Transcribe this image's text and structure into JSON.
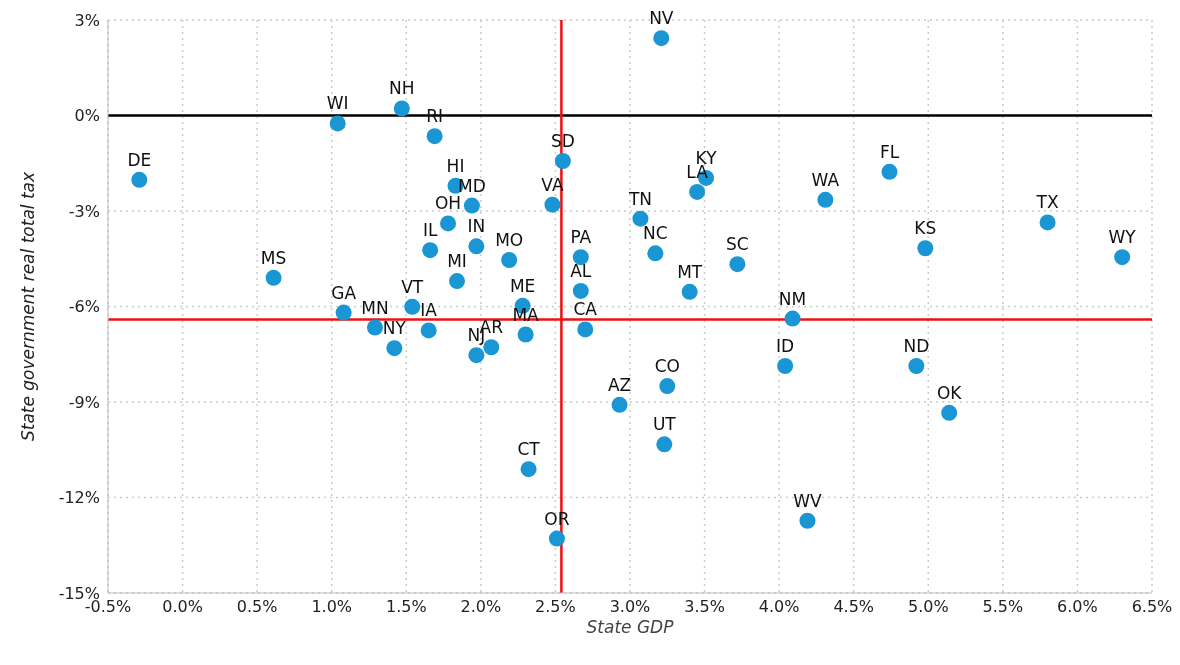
{
  "chart_data": {
    "type": "scatter",
    "xlabel": "State GDP",
    "ylabel": "State government real total tax",
    "x": [
      3.21,
      1.47,
      1.04,
      1.69,
      -0.29,
      2.55,
      1.83,
      1.94,
      1.78,
      1.66,
      1.97,
      2.19,
      1.84,
      1.54,
      1.65,
      2.28,
      2.3,
      2.07,
      1.97,
      1.08,
      1.29,
      1.42,
      2.48,
      0.61,
      3.51,
      3.45,
      3.07,
      3.17,
      2.67,
      2.67,
      2.7,
      3.4,
      3.72,
      3.25,
      2.93,
      3.23,
      4.74,
      4.31,
      5.8,
      6.3,
      4.98,
      4.09,
      4.04,
      4.92,
      5.14,
      4.19,
      2.32,
      2.51
    ],
    "series": [
      {
        "color": "#1b96d4",
        "values": [
          2.43,
          0.22,
          -0.25,
          -0.65,
          -2.02,
          -1.43,
          -2.21,
          -2.83,
          -3.39,
          -4.23,
          -4.11,
          -4.54,
          -5.2,
          -6.01,
          -6.75,
          -5.98,
          -6.88,
          -7.28,
          -7.53,
          -6.19,
          -6.66,
          -7.31,
          -2.8,
          -5.1,
          -1.96,
          -2.4,
          -3.24,
          -4.33,
          -4.45,
          -5.51,
          -6.72,
          -5.54,
          -4.67,
          -8.5,
          -9.09,
          -10.33,
          -1.77,
          -2.65,
          -3.36,
          -4.45,
          -4.17,
          -6.38,
          -7.87,
          -7.87,
          -9.34,
          -12.73,
          -11.11,
          -13.29
        ]
      }
    ],
    "annotations": [
      {
        "text": "NV",
        "x": 3.21,
        "y": 2.43
      },
      {
        "text": "NH",
        "x": 1.47,
        "y": 0.22
      },
      {
        "text": "WI",
        "x": 1.04,
        "y": -0.25
      },
      {
        "text": "RI",
        "x": 1.69,
        "y": -0.65
      },
      {
        "text": "DE",
        "x": -0.29,
        "y": -2.02
      },
      {
        "text": "SD",
        "x": 2.55,
        "y": -1.43
      },
      {
        "text": "HI",
        "x": 1.83,
        "y": -2.21
      },
      {
        "text": "MD",
        "x": 1.94,
        "y": -2.83
      },
      {
        "text": "OH",
        "x": 1.78,
        "y": -3.39
      },
      {
        "text": "IL",
        "x": 1.66,
        "y": -4.23
      },
      {
        "text": "IN",
        "x": 1.97,
        "y": -4.11
      },
      {
        "text": "MO",
        "x": 2.19,
        "y": -4.54
      },
      {
        "text": "MI",
        "x": 1.84,
        "y": -5.2
      },
      {
        "text": "VT",
        "x": 1.54,
        "y": -6.01
      },
      {
        "text": "IA",
        "x": 1.65,
        "y": -6.75
      },
      {
        "text": "ME",
        "x": 2.28,
        "y": -5.98
      },
      {
        "text": "MA",
        "x": 2.3,
        "y": -6.88
      },
      {
        "text": "AR",
        "x": 2.07,
        "y": -7.28
      },
      {
        "text": "NJ",
        "x": 1.97,
        "y": -7.53
      },
      {
        "text": "GA",
        "x": 1.08,
        "y": -6.19
      },
      {
        "text": "MN",
        "x": 1.29,
        "y": -6.66
      },
      {
        "text": "NY",
        "x": 1.42,
        "y": -7.31
      },
      {
        "text": "VA",
        "x": 2.48,
        "y": -2.8
      },
      {
        "text": "MS",
        "x": 0.61,
        "y": -5.1
      },
      {
        "text": "KY",
        "x": 3.51,
        "y": -1.96
      },
      {
        "text": "LA",
        "x": 3.45,
        "y": -2.4
      },
      {
        "text": "TN",
        "x": 3.07,
        "y": -3.24
      },
      {
        "text": "NC",
        "x": 3.17,
        "y": -4.33
      },
      {
        "text": "PA",
        "x": 2.67,
        "y": -4.45
      },
      {
        "text": "AL",
        "x": 2.67,
        "y": -5.51
      },
      {
        "text": "CA",
        "x": 2.7,
        "y": -6.72
      },
      {
        "text": "MT",
        "x": 3.4,
        "y": -5.54
      },
      {
        "text": "SC",
        "x": 3.72,
        "y": -4.67
      },
      {
        "text": "CO",
        "x": 3.25,
        "y": -8.5
      },
      {
        "text": "AZ",
        "x": 2.93,
        "y": -9.09
      },
      {
        "text": "UT",
        "x": 3.23,
        "y": -10.33
      },
      {
        "text": "FL",
        "x": 4.74,
        "y": -1.77
      },
      {
        "text": "WA",
        "x": 4.31,
        "y": -2.65
      },
      {
        "text": "TX",
        "x": 5.8,
        "y": -3.36
      },
      {
        "text": "WY",
        "x": 6.3,
        "y": -4.45
      },
      {
        "text": "KS",
        "x": 4.98,
        "y": -4.17
      },
      {
        "text": "NM",
        "x": 4.09,
        "y": -6.38
      },
      {
        "text": "ID",
        "x": 4.04,
        "y": -7.87
      },
      {
        "text": "ND",
        "x": 4.92,
        "y": -7.87
      },
      {
        "text": "OK",
        "x": 5.14,
        "y": -9.34
      },
      {
        "text": "WV",
        "x": 4.19,
        "y": -12.73
      },
      {
        "text": "CT",
        "x": 2.32,
        "y": -11.11
      },
      {
        "text": "OR",
        "x": 2.51,
        "y": -13.29
      }
    ],
    "xlim": [
      -0.5,
      6.5
    ],
    "xticks": [
      {
        "value": -0.5,
        "label": "-0.5%"
      },
      {
        "value": 0,
        "label": "0.0%"
      },
      {
        "value": 0.5,
        "label": "0.5%"
      },
      {
        "value": 1,
        "label": "1.0%"
      },
      {
        "value": 1.5,
        "label": "1.5%"
      },
      {
        "value": 2,
        "label": "2.0%"
      },
      {
        "value": 2.5,
        "label": "2.5%"
      },
      {
        "value": 3,
        "label": "3.0%"
      },
      {
        "value": 3.5,
        "label": "3.5%"
      },
      {
        "value": 4,
        "label": "4.0%"
      },
      {
        "value": 4.5,
        "label": "4.5%"
      },
      {
        "value": 5,
        "label": "5.0%"
      },
      {
        "value": 5.5,
        "label": "5.5%"
      },
      {
        "value": 6,
        "label": "6.0%"
      },
      {
        "value": 6.5,
        "label": "6.5%"
      }
    ],
    "ylim": [
      -15,
      3
    ],
    "yticks": [
      {
        "value": 3,
        "label": "3%"
      },
      {
        "value": 0,
        "label": "0%"
      },
      {
        "value": -3,
        "label": "-3%"
      },
      {
        "value": -6,
        "label": "-6%"
      },
      {
        "value": -9,
        "label": "-9%"
      },
      {
        "value": -12,
        "label": "-12%"
      },
      {
        "value": -15,
        "label": "-15%"
      }
    ],
    "ref_lines": [
      {
        "axis": "y",
        "value": 0,
        "color": "#000000"
      },
      {
        "axis": "x",
        "value": 2.54,
        "color": "#ee1111"
      },
      {
        "axis": "y",
        "value": -6.41,
        "color": "#ee1111"
      }
    ],
    "grid": true,
    "marker": "circle",
    "legend": false
  }
}
